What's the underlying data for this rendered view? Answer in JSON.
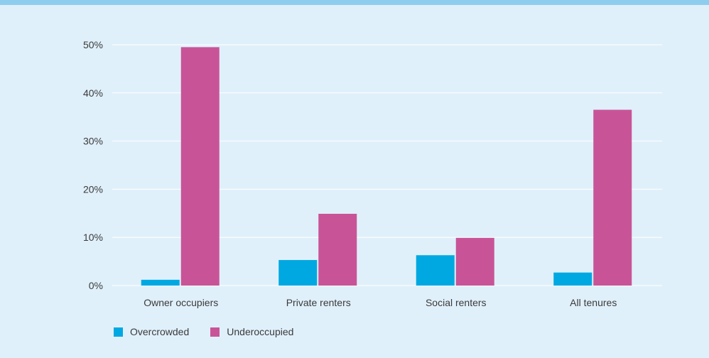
{
  "chart_data": {
    "type": "bar",
    "categories": [
      "Owner occupiers",
      "Private renters",
      "Social renters",
      "All tenures"
    ],
    "series": [
      {
        "name": "Overcrowded",
        "values": [
          1.2,
          5.3,
          6.3,
          2.7
        ],
        "color": "#00a8e1"
      },
      {
        "name": "Underoccupied",
        "values": [
          49.5,
          14.9,
          9.9,
          36.5
        ],
        "color": "#c85497"
      }
    ],
    "yticks": [
      "0%",
      "10%",
      "20%",
      "30%",
      "40%",
      "50%"
    ],
    "ylim": [
      0,
      50
    ],
    "grid": true,
    "legend_position": "bottom-left"
  },
  "colors": {
    "background": "#e0f0fb",
    "top_bar": "#8ecdee",
    "gridline": "#ffffff"
  }
}
